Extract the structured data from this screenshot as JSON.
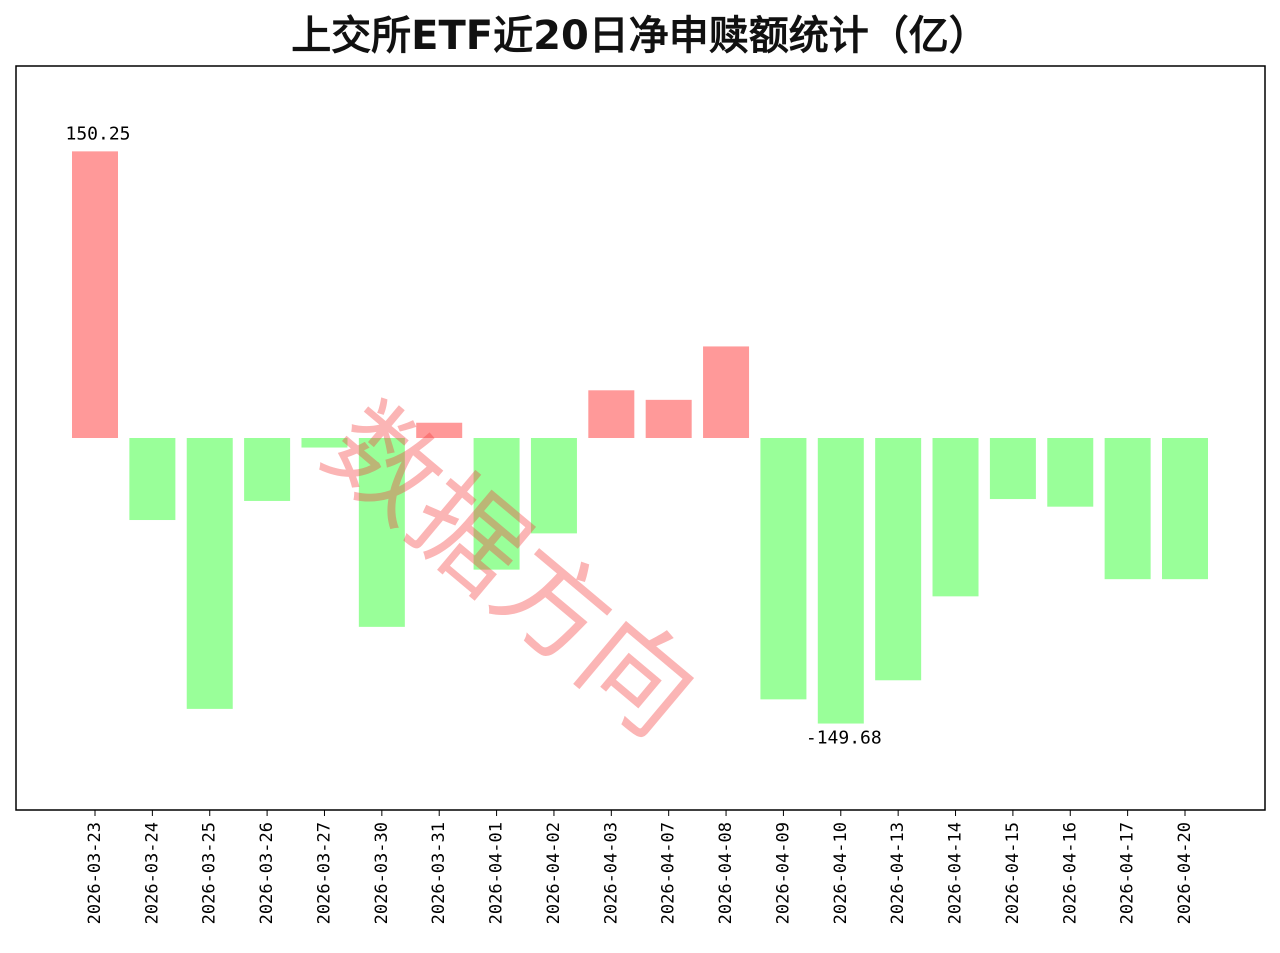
{
  "chart_data": {
    "type": "bar",
    "title": "上交所ETF近20日净申赎额统计（亿）",
    "categories": [
      "2026-03-23",
      "2026-03-24",
      "2026-03-25",
      "2026-03-26",
      "2026-03-27",
      "2026-03-30",
      "2026-03-31",
      "2026-04-01",
      "2026-04-02",
      "2026-04-03",
      "2026-04-07",
      "2026-04-08",
      "2026-04-09",
      "2026-04-10",
      "2026-04-13",
      "2026-04-14",
      "2026-04-15",
      "2026-04-16",
      "2026-04-17",
      "2026-04-20"
    ],
    "values": [
      150.25,
      -43,
      -142,
      -33,
      -5,
      -99,
      8,
      -69,
      -50,
      25,
      20,
      48,
      -137,
      -149.68,
      -127,
      -83,
      -32,
      -36,
      -74,
      -74
    ],
    "ylim": [
      -195,
      195
    ],
    "annotations": [
      {
        "category": "2026-03-23",
        "text": "150.25"
      },
      {
        "category": "2026-04-10",
        "text": "-149.68"
      }
    ],
    "colors": {
      "positive": "#ff9999",
      "negative": "#99ff99"
    },
    "grid": false,
    "legend": "none"
  },
  "watermark": "数据方向"
}
